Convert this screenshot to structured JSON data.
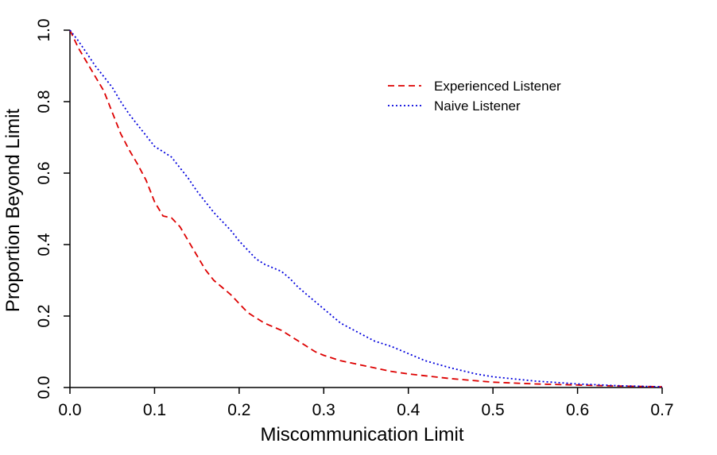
{
  "chart_data": {
    "type": "line",
    "title": "",
    "xlabel": "Miscommunication Limit",
    "ylabel": "Proportion Beyond Limit",
    "xlim": [
      0,
      0.7
    ],
    "ylim": [
      0,
      1.0
    ],
    "x_ticks": [
      "0.0",
      "0.1",
      "0.2",
      "0.3",
      "0.4",
      "0.5",
      "0.6",
      "0.7"
    ],
    "y_ticks": [
      "0.0",
      "0.2",
      "0.4",
      "0.6",
      "0.8",
      "1.0"
    ],
    "grid": false,
    "legend_position": "top-right",
    "series": [
      {
        "name": "Experienced Listener",
        "color": "#dd0000",
        "line_style": "dashed",
        "points": [
          [
            0.0,
            1.0
          ],
          [
            0.01,
            0.95
          ],
          [
            0.02,
            0.91
          ],
          [
            0.03,
            0.87
          ],
          [
            0.04,
            0.83
          ],
          [
            0.05,
            0.77
          ],
          [
            0.06,
            0.71
          ],
          [
            0.07,
            0.665
          ],
          [
            0.08,
            0.625
          ],
          [
            0.09,
            0.58
          ],
          [
            0.1,
            0.52
          ],
          [
            0.11,
            0.48
          ],
          [
            0.12,
            0.475
          ],
          [
            0.13,
            0.45
          ],
          [
            0.14,
            0.41
          ],
          [
            0.15,
            0.37
          ],
          [
            0.16,
            0.33
          ],
          [
            0.17,
            0.3
          ],
          [
            0.18,
            0.28
          ],
          [
            0.19,
            0.26
          ],
          [
            0.2,
            0.235
          ],
          [
            0.21,
            0.21
          ],
          [
            0.22,
            0.195
          ],
          [
            0.23,
            0.18
          ],
          [
            0.24,
            0.17
          ],
          [
            0.25,
            0.16
          ],
          [
            0.26,
            0.145
          ],
          [
            0.27,
            0.13
          ],
          [
            0.28,
            0.115
          ],
          [
            0.29,
            0.1
          ],
          [
            0.3,
            0.09
          ],
          [
            0.32,
            0.075
          ],
          [
            0.34,
            0.065
          ],
          [
            0.36,
            0.055
          ],
          [
            0.38,
            0.045
          ],
          [
            0.4,
            0.038
          ],
          [
            0.45,
            0.025
          ],
          [
            0.5,
            0.015
          ],
          [
            0.55,
            0.01
          ],
          [
            0.6,
            0.007
          ],
          [
            0.65,
            0.004
          ],
          [
            0.7,
            0.002
          ]
        ]
      },
      {
        "name": "Naive Listener",
        "color": "#0000dd",
        "line_style": "dotted",
        "points": [
          [
            0.0,
            1.0
          ],
          [
            0.01,
            0.97
          ],
          [
            0.02,
            0.935
          ],
          [
            0.03,
            0.9
          ],
          [
            0.04,
            0.87
          ],
          [
            0.05,
            0.84
          ],
          [
            0.06,
            0.8
          ],
          [
            0.07,
            0.765
          ],
          [
            0.08,
            0.735
          ],
          [
            0.09,
            0.705
          ],
          [
            0.1,
            0.675
          ],
          [
            0.11,
            0.66
          ],
          [
            0.12,
            0.645
          ],
          [
            0.13,
            0.615
          ],
          [
            0.14,
            0.585
          ],
          [
            0.15,
            0.55
          ],
          [
            0.16,
            0.52
          ],
          [
            0.17,
            0.49
          ],
          [
            0.18,
            0.465
          ],
          [
            0.19,
            0.44
          ],
          [
            0.2,
            0.41
          ],
          [
            0.21,
            0.385
          ],
          [
            0.22,
            0.36
          ],
          [
            0.23,
            0.345
          ],
          [
            0.24,
            0.335
          ],
          [
            0.25,
            0.325
          ],
          [
            0.26,
            0.305
          ],
          [
            0.27,
            0.28
          ],
          [
            0.28,
            0.26
          ],
          [
            0.29,
            0.24
          ],
          [
            0.3,
            0.22
          ],
          [
            0.31,
            0.2
          ],
          [
            0.32,
            0.18
          ],
          [
            0.34,
            0.155
          ],
          [
            0.36,
            0.13
          ],
          [
            0.38,
            0.115
          ],
          [
            0.4,
            0.095
          ],
          [
            0.42,
            0.075
          ],
          [
            0.45,
            0.055
          ],
          [
            0.48,
            0.038
          ],
          [
            0.5,
            0.03
          ],
          [
            0.55,
            0.018
          ],
          [
            0.6,
            0.01
          ],
          [
            0.65,
            0.005
          ],
          [
            0.7,
            0.002
          ]
        ]
      }
    ]
  }
}
